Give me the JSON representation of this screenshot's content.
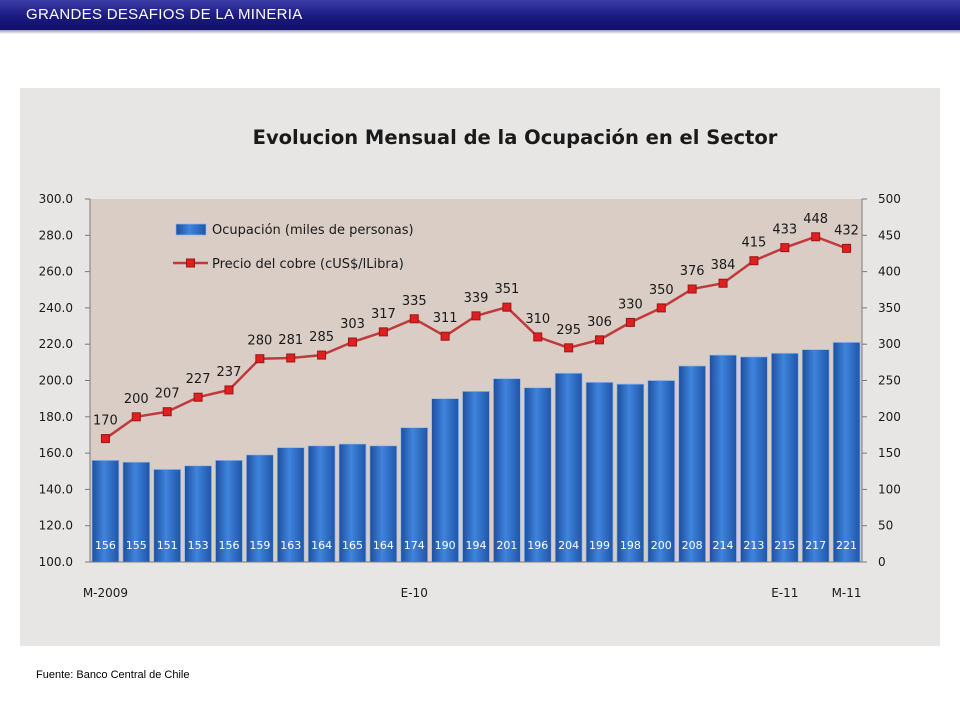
{
  "header": {
    "title": "GRANDES DESAFIOS DE LA MINERIA"
  },
  "source": "Fuente: Banco Central de Chile",
  "chart_data": {
    "type": "bar",
    "title": "Evolucion Mensual de la Ocupación en el Sector",
    "categories": [
      "M-2009",
      "",
      "",
      "",
      "",
      "",
      "",
      "",
      "",
      "",
      "E-10",
      "",
      "",
      "",
      "",
      "",
      "",
      "",
      "",
      "",
      "",
      "",
      "E-11",
      "",
      "M-11"
    ],
    "x_tick_labels": [
      "M-2009",
      "E-10",
      "E-11",
      "M-11"
    ],
    "legend_position": "top-left",
    "grid": false,
    "y_left": {
      "range": [
        100,
        300
      ],
      "ticks": [
        "100.0",
        "120.0",
        "140.0",
        "160.0",
        "180.0",
        "200.0",
        "220.0",
        "240.0",
        "260.0",
        "280.0",
        "300.0"
      ]
    },
    "y_right": {
      "range": [
        0,
        500
      ],
      "ticks": [
        "0",
        "50",
        "100",
        "150",
        "200",
        "250",
        "300",
        "350",
        "400",
        "450",
        "500"
      ]
    },
    "series": [
      {
        "name": "Ocupación (miles de personas)",
        "type": "bar",
        "axis": "left",
        "color": "#2f6fc9",
        "values": [
          156,
          155,
          151,
          153,
          156,
          159,
          163,
          164,
          165,
          164,
          174,
          190,
          194,
          201,
          196,
          204,
          199,
          198,
          200,
          208,
          214,
          213,
          215,
          217,
          221
        ]
      },
      {
        "name": "Precio del cobre (cUS$/lLibra)",
        "type": "line",
        "axis": "right",
        "color": "#c0393b",
        "values": [
          170,
          200,
          207,
          227,
          237,
          280,
          281,
          285,
          303,
          317,
          335,
          311,
          339,
          351,
          310,
          295,
          306,
          330,
          350,
          376,
          384,
          415,
          433,
          448,
          432
        ]
      }
    ]
  }
}
